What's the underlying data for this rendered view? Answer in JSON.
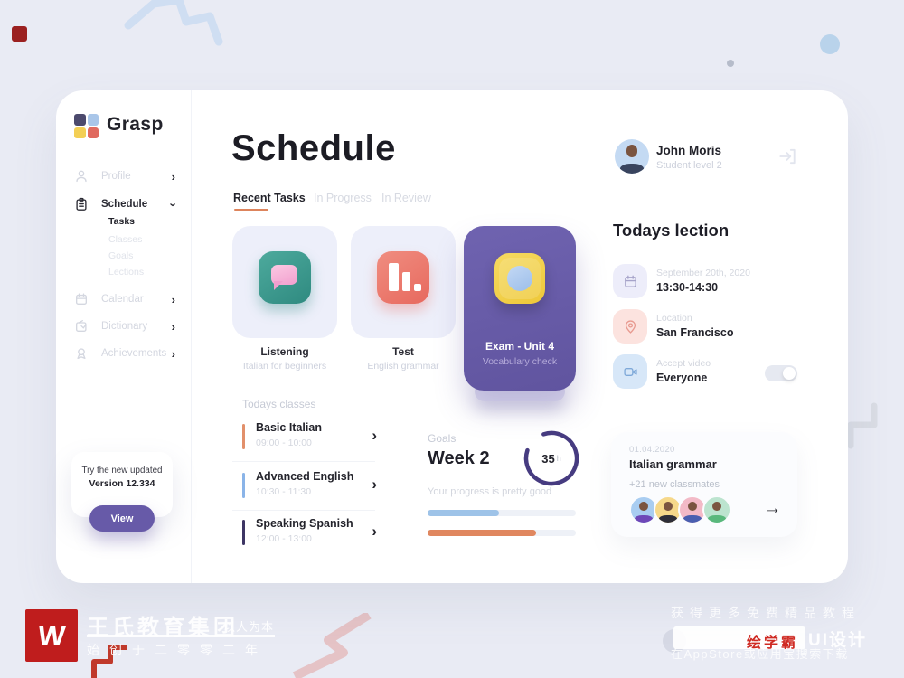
{
  "colors": {
    "page_bg": "#e9ebf4",
    "accent_purple": "#675aa8",
    "accent_orange": "#dd845c",
    "ring_purple": "#463b80",
    "logo_tiles": [
      "#4c4a6d",
      "#a9c6e9",
      "#f3cf55",
      "#e06a5f"
    ]
  },
  "brand": {
    "name": "Grasp"
  },
  "sidebar": {
    "items": [
      {
        "label": "Profile"
      },
      {
        "label": "Schedule"
      },
      {
        "label": "Calendar"
      },
      {
        "label": "Dictionary"
      },
      {
        "label": "Achievements"
      }
    ],
    "schedule_children": [
      {
        "label": "Tasks",
        "active": true
      },
      {
        "label": "Classes",
        "active": false
      },
      {
        "label": "Goals",
        "active": false
      },
      {
        "label": "Lections",
        "active": false
      }
    ],
    "update_card": {
      "line1": "Try the new updated",
      "line2": "Version 12.334",
      "button_label": "View"
    }
  },
  "header": {
    "title": "Schedule"
  },
  "tabs": [
    {
      "label": "Recent Tasks",
      "active": true
    },
    {
      "label": "In Progress",
      "active": false
    },
    {
      "label": "In Review",
      "active": false
    }
  ],
  "task_cards": [
    {
      "title": "Listening",
      "subtitle": "Italian for beginners",
      "icon": "speech-bubble"
    },
    {
      "title": "Test",
      "subtitle": "English grammar",
      "icon": "bar-chart"
    },
    {
      "title": "Exam - Unit 4",
      "subtitle": "Vocabulary check",
      "icon": "camera"
    }
  ],
  "classes": {
    "title": "Todays classes",
    "items": [
      {
        "name": "Basic Italian",
        "time": "09:00 - 10:00",
        "accent": "#e2906b"
      },
      {
        "name": "Advanced  English",
        "time": "10:30 - 11:30",
        "accent": "#8ab4e8"
      },
      {
        "name": "Speaking Spanish",
        "time": "12:00 - 13:00",
        "accent": "#3d3564"
      }
    ]
  },
  "goals": {
    "label": "Goals",
    "week": "Week 2",
    "hours_value": "35",
    "hours_unit": "h",
    "ring_percent": 85,
    "note": "Your progress is pretty good",
    "bars": [
      {
        "percent": 48,
        "color": "#9ec3e8"
      },
      {
        "percent": 73,
        "color": "#e0875f"
      }
    ]
  },
  "user": {
    "name": "John Moris",
    "level": "Student level 2"
  },
  "lection": {
    "title": "Todays lection",
    "items": [
      {
        "icon": "calendar",
        "label": "September 20th, 2020",
        "value": "13:30-14:30"
      },
      {
        "icon": "location-pin",
        "label": "Location",
        "value": "San Francisco"
      },
      {
        "icon": "video-camera",
        "label": "Accept video",
        "value": "Everyone",
        "toggle_on": true
      }
    ]
  },
  "next_class": {
    "date": "01.04.2020",
    "title": "Italian grammar",
    "note": "+21  new classmates",
    "avatar_colors": [
      "#a9cdf1",
      "#f6d88a",
      "#f3bac7",
      "#bce4cf"
    ],
    "arrow": "→"
  },
  "watermarks": {
    "bottom_left": {
      "logo_letter": "W",
      "org": "王氏教育集团",
      "slogan": "以人为本",
      "since": "始创于二零零二年"
    },
    "bottom_right": {
      "line1": "获得更多免费精品教程",
      "brand_red": "绘学霸",
      "brand_suffix": "UI设计",
      "line2": "在AppStore或应用宝搜索下载"
    }
  }
}
